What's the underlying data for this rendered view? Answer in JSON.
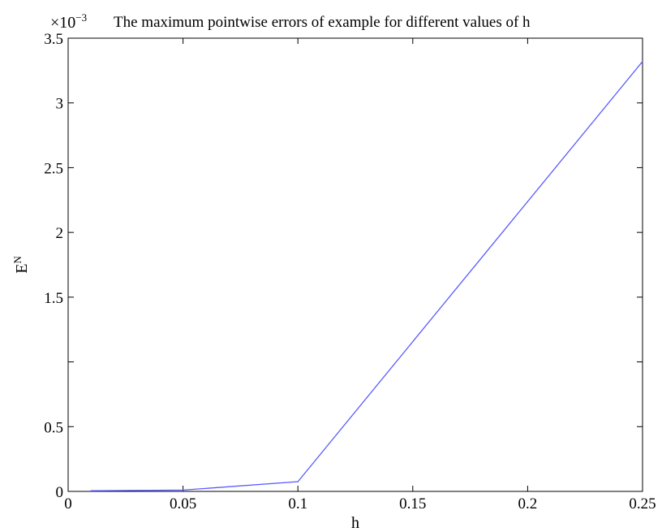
{
  "chart_data": {
    "type": "line",
    "title": "The maximum pointwise errors of example for different values of h",
    "exponent_label": "×10",
    "exponent_power": "−3",
    "xlabel": "h",
    "ylabel_base": "E",
    "ylabel_sup": "N",
    "xlim": [
      0,
      0.25
    ],
    "ylim": [
      0,
      3.5
    ],
    "x_ticks": [
      0,
      0.05,
      0.1,
      0.15,
      0.2,
      0.25
    ],
    "x_tick_labels": [
      "0",
      "0.05",
      "0.1",
      "0.15",
      "0.2",
      "0.25"
    ],
    "y_ticks": [
      0,
      0.5,
      1,
      1.5,
      2,
      2.5,
      3,
      3.5
    ],
    "y_tick_labels": [
      "0",
      "0.5",
      "",
      "1.5",
      "2",
      "2.5",
      "3",
      "3.5"
    ],
    "grid": false,
    "series": [
      {
        "color": "#5b5bff",
        "x": [
          0.01,
          0.05,
          0.1,
          0.25
        ],
        "y": [
          0.005,
          0.01,
          0.075,
          3.32
        ]
      }
    ]
  }
}
